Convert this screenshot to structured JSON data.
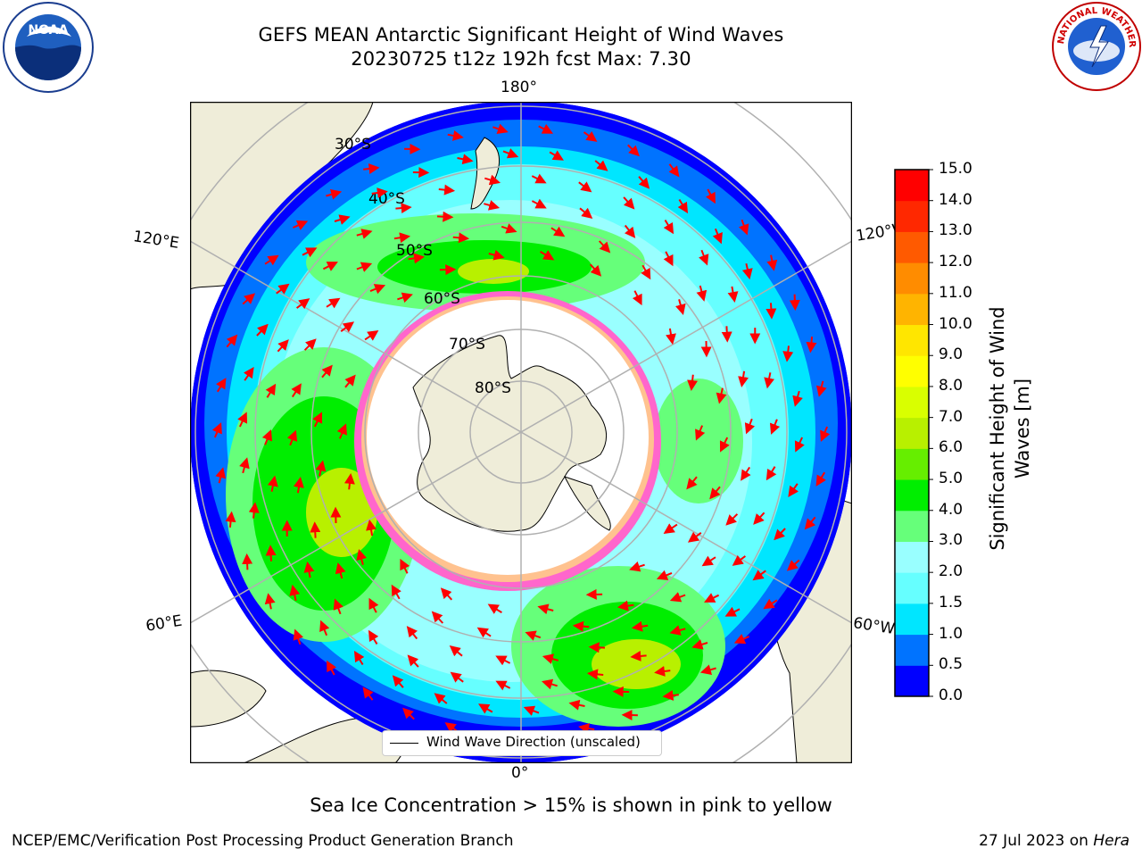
{
  "title": {
    "line1": "GEFS MEAN Antarctic Significant Height of Wind Waves",
    "line2": "20230725 t12z 192h fcst   Max: 7.30"
  },
  "logos": {
    "left": {
      "icon": "noaa-logo",
      "text": "NOAA"
    },
    "right": {
      "icon": "nws-logo",
      "text": "NATIONAL WEATHER SERVICE"
    }
  },
  "map": {
    "projection": "south-polar-stereographic",
    "longitude_labels": {
      "top": "180°",
      "bottom": "0°",
      "upper_left": "120°E",
      "lower_left": "60°E",
      "upper_right": "120°W",
      "lower_right": "60°W"
    },
    "latitude_labels": [
      "30°S",
      "40°S",
      "50°S",
      "60°S",
      "70°S",
      "80°S"
    ],
    "legend": {
      "entry": "Wind Wave Direction (unscaled)"
    },
    "arrow_color": "#ff0000",
    "land_color": "#efedd9",
    "ice_colors": [
      "#ff66cc",
      "#ffa500",
      "#ffff66"
    ]
  },
  "colorbar": {
    "label": "Significant Height of Wind Waves [m]",
    "ticks": [
      "0.0",
      "0.5",
      "1.0",
      "1.5",
      "2.0",
      "3.0",
      "4.0",
      "5.0",
      "6.0",
      "7.0",
      "8.0",
      "9.0",
      "10.0",
      "11.0",
      "12.0",
      "13.0",
      "14.0",
      "15.0"
    ],
    "colors": [
      "#0000ff",
      "#0073ff",
      "#00e6ff",
      "#66ffff",
      "#99ffff",
      "#66ff7a",
      "#00ee00",
      "#66ee00",
      "#b8f000",
      "#d9ff00",
      "#ffff00",
      "#ffe600",
      "#ffb400",
      "#ff8c00",
      "#ff5a00",
      "#ff2800",
      "#ff0000"
    ]
  },
  "footer": {
    "note": "Sea Ice Concentration > 15% is shown in pink to yellow",
    "left": "NCEP/EMC/Verification Post Processing Product Generation Branch",
    "right_date": "27 Jul 2023 on ",
    "right_machine": "Hera"
  }
}
